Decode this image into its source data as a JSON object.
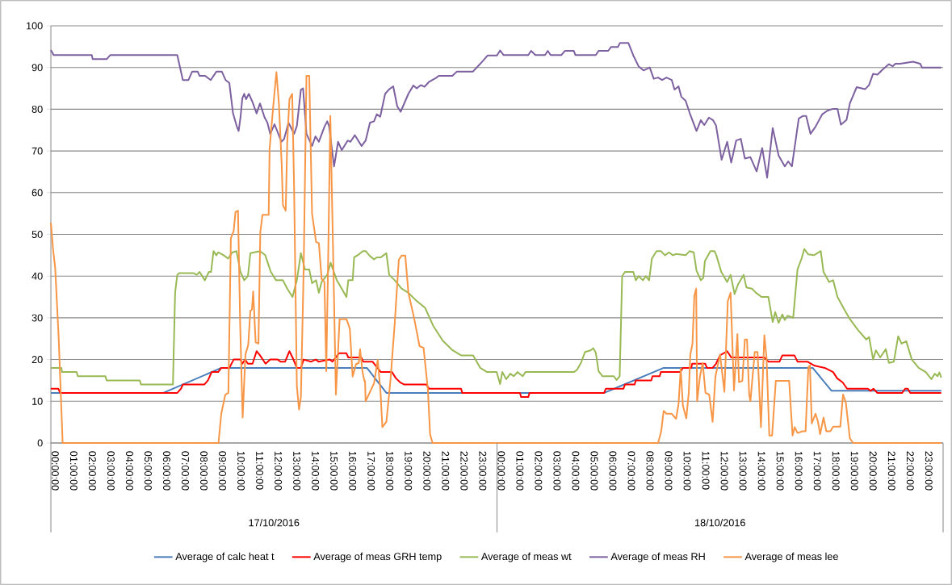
{
  "chart_data": {
    "type": "line",
    "xlim": [
      "2016-10-17T00:00",
      "2016-10-19T00:00"
    ],
    "ylim": [
      0,
      100
    ],
    "yticks": [
      0,
      10,
      20,
      30,
      40,
      50,
      60,
      70,
      80,
      90,
      100
    ],
    "xticks": [
      {
        "value": "2016-10-17T00:00",
        "label": "00:00:00"
      },
      {
        "value": "2016-10-17T01:00",
        "label": "01:00:00"
      },
      {
        "value": "2016-10-17T02:00",
        "label": "02:00:00"
      },
      {
        "value": "2016-10-17T03:00",
        "label": "03:00:00"
      },
      {
        "value": "2016-10-17T04:00",
        "label": "04:00:00"
      },
      {
        "value": "2016-10-17T05:00",
        "label": "05:00:00"
      },
      {
        "value": "2016-10-17T06:00",
        "label": "06:00:00"
      },
      {
        "value": "2016-10-17T07:00",
        "label": "07:00:00"
      },
      {
        "value": "2016-10-17T08:00",
        "label": "08:00:00"
      },
      {
        "value": "2016-10-17T09:00",
        "label": "09:00:00"
      },
      {
        "value": "2016-10-17T10:00",
        "label": "10:00:00"
      },
      {
        "value": "2016-10-17T11:00",
        "label": "11:00:00"
      },
      {
        "value": "2016-10-17T12:00",
        "label": "12:00:00"
      },
      {
        "value": "2016-10-17T13:00",
        "label": "13:00:00"
      },
      {
        "value": "2016-10-17T14:00",
        "label": "14:00:00"
      },
      {
        "value": "2016-10-17T15:00",
        "label": "15:00:00"
      },
      {
        "value": "2016-10-17T16:00",
        "label": "16:00:00"
      },
      {
        "value": "2016-10-17T17:00",
        "label": "17:00:00"
      },
      {
        "value": "2016-10-17T18:00",
        "label": "18:00:00"
      },
      {
        "value": "2016-10-17T19:00",
        "label": "19:00:00"
      },
      {
        "value": "2016-10-17T20:00",
        "label": "20:00:00"
      },
      {
        "value": "2016-10-17T21:00",
        "label": "21:00:00"
      },
      {
        "value": "2016-10-17T22:00",
        "label": "22:00:00"
      },
      {
        "value": "2016-10-17T23:00",
        "label": "23:00:00"
      },
      {
        "value": "2016-10-18T00:00",
        "label": "00:00:00"
      },
      {
        "value": "2016-10-18T01:00",
        "label": "01:00:00"
      },
      {
        "value": "2016-10-18T02:00",
        "label": "02:00:00"
      },
      {
        "value": "2016-10-18T03:00",
        "label": "03:00:00"
      },
      {
        "value": "2016-10-18T04:00",
        "label": "04:00:00"
      },
      {
        "value": "2016-10-18T05:00",
        "label": "05:00:00"
      },
      {
        "value": "2016-10-18T06:00",
        "label": "06:00:00"
      },
      {
        "value": "2016-10-18T07:00",
        "label": "07:00:00"
      },
      {
        "value": "2016-10-18T08:00",
        "label": "08:00:00"
      },
      {
        "value": "2016-10-18T09:00",
        "label": "09:00:00"
      },
      {
        "value": "2016-10-18T10:00",
        "label": "10:00:00"
      },
      {
        "value": "2016-10-18T11:00",
        "label": "11:00:00"
      },
      {
        "value": "2016-10-18T12:00",
        "label": "12:00:00"
      },
      {
        "value": "2016-10-18T13:00",
        "label": "13:00:00"
      },
      {
        "value": "2016-10-18T14:00",
        "label": "14:00:00"
      },
      {
        "value": "2016-10-18T15:00",
        "label": "15:00:00"
      },
      {
        "value": "2016-10-18T16:00",
        "label": "16:00:00"
      },
      {
        "value": "2016-10-18T17:00",
        "label": "17:00:00"
      },
      {
        "value": "2016-10-18T18:00",
        "label": "18:00:00"
      },
      {
        "value": "2016-10-18T19:00",
        "label": "19:00:00"
      },
      {
        "value": "2016-10-18T20:00",
        "label": "20:00:00"
      },
      {
        "value": "2016-10-18T21:00",
        "label": "21:00:00"
      },
      {
        "value": "2016-10-18T22:00",
        "label": "22:00:00"
      },
      {
        "value": "2016-10-18T23:00",
        "label": "23:00:00"
      }
    ],
    "annotations": [
      "17/10/2016",
      "18/10/2016"
    ],
    "grid": "y",
    "legend": "bottom",
    "series": [
      {
        "name": "Average of calc heat t",
        "color": "#4a7ebb",
        "x": [
          "2016-10-17T00:00",
          "2016-10-17T06:03",
          "2016-10-17T09:10",
          "2016-10-17T17:00",
          "2016-10-17T18:03",
          "2016-10-18T05:46",
          "2016-10-18T08:58",
          "2016-10-18T16:59",
          "2016-10-18T18:00",
          "2016-10-18T23:54"
        ],
        "values": [
          12,
          12,
          18,
          18,
          12,
          12,
          18,
          18,
          12.5,
          12.5
        ]
      },
      {
        "name": "Average of meas GRH temp",
        "color": "#ff0000",
        "x": [
          "2016-10-17T00:00",
          "2016-10-17T00:24",
          "2016-10-17T00:30",
          "2016-10-17T06:48",
          "2016-10-17T07:00",
          "2016-10-17T07:06",
          "2016-10-17T08:15",
          "2016-10-17T08:27",
          "2016-10-17T08:39",
          "2016-10-17T09:00",
          "2016-10-17T09:10",
          "2016-10-17T09:36",
          "2016-10-17T09:50",
          "2016-10-17T10:12",
          "2016-10-17T10:18",
          "2016-10-17T10:27",
          "2016-10-17T10:36",
          "2016-10-17T10:51",
          "2016-10-17T11:04",
          "2016-10-17T11:15",
          "2016-10-17T11:33",
          "2016-10-17T11:48",
          "2016-10-17T12:12",
          "2016-10-17T12:21",
          "2016-10-17T12:36",
          "2016-10-17T12:50",
          "2016-10-17T13:00",
          "2016-10-17T13:14",
          "2016-10-17T13:27",
          "2016-10-17T13:36",
          "2016-10-17T14:00",
          "2016-10-17T14:15",
          "2016-10-17T14:24",
          "2016-10-17T15:00",
          "2016-10-17T15:09",
          "2016-10-17T15:30",
          "2016-10-17T15:54",
          "2016-10-17T16:00",
          "2016-10-17T16:42",
          "2016-10-17T16:48",
          "2016-10-17T17:18",
          "2016-10-17T17:45",
          "2016-10-17T18:21",
          "2016-10-17T18:34",
          "2016-10-17T18:48",
          "2016-10-17T19:01",
          "2016-10-17T20:12",
          "2016-10-17T20:21",
          "2016-10-17T22:04",
          "2016-10-17T22:08",
          "2016-10-18T01:14",
          "2016-10-18T01:18",
          "2016-10-18T01:41",
          "2016-10-18T01:45",
          "2016-10-18T05:46",
          "2016-10-18T05:51",
          "2016-10-18T06:48",
          "2016-10-18T06:53",
          "2016-10-18T07:24",
          "2016-10-18T07:28",
          "2016-10-18T08:18",
          "2016-10-18T08:22",
          "2016-10-18T08:45",
          "2016-10-18T08:49",
          "2016-10-18T09:51",
          "2016-10-18T10:00",
          "2016-10-18T10:27",
          "2016-10-18T10:30",
          "2016-10-18T11:12",
          "2016-10-18T11:18",
          "2016-10-18T11:36",
          "2016-10-18T11:47",
          "2016-10-18T12:00",
          "2016-10-18T12:23",
          "2016-10-18T12:36",
          "2016-10-18T14:23",
          "2016-10-18T14:36",
          "2016-10-18T15:12",
          "2016-10-18T15:21",
          "2016-10-18T16:00",
          "2016-10-18T16:10",
          "2016-10-18T16:42",
          "2016-10-18T16:54",
          "2016-10-18T17:06",
          "2016-10-18T17:38",
          "2016-10-18T18:05",
          "2016-10-18T18:18",
          "2016-10-18T18:36",
          "2016-10-18T18:50",
          "2016-10-18T19:57",
          "2016-10-18T20:06",
          "2016-10-18T20:15",
          "2016-10-18T20:28",
          "2016-10-18T21:48",
          "2016-10-18T21:57",
          "2016-10-18T22:06",
          "2016-10-18T22:14",
          "2016-10-18T23:54"
        ],
        "values": [
          13,
          13,
          12,
          12,
          13,
          14,
          14,
          15,
          17,
          17,
          18,
          18,
          20,
          20,
          19,
          20,
          19,
          19,
          22,
          21,
          19,
          20,
          20,
          19.5,
          19.5,
          22,
          20.5,
          18,
          18,
          20,
          19.5,
          20,
          19.5,
          20,
          19.5,
          21.5,
          21.5,
          20.5,
          20.5,
          19.5,
          19.5,
          17,
          17,
          15.5,
          14.5,
          14,
          14,
          13,
          13,
          12,
          12,
          11,
          11,
          12,
          12,
          13,
          13,
          14,
          14,
          15,
          15,
          16,
          16,
          17,
          17,
          18,
          18,
          19,
          19,
          18,
          18,
          19,
          21,
          22,
          20.5,
          20.5,
          19.5,
          19.5,
          21,
          21,
          19.5,
          19.5,
          19,
          18.5,
          18,
          17,
          15.5,
          14.5,
          13,
          13,
          12.5,
          13,
          12,
          12,
          13,
          13,
          12,
          12
        ]
      },
      {
        "name": "Average of meas wt",
        "color": "#98b954",
        "x": [
          "2016-10-17T00:00",
          "2016-10-17T00:34",
          "2016-10-17T00:36",
          "2016-10-17T01:23",
          "2016-10-17T01:27",
          "2016-10-17T02:56",
          "2016-10-17T03:00",
          "2016-10-17T04:47",
          "2016-10-17T04:51",
          "2016-10-17T06:34",
          "2016-10-17T06:41",
          "2016-10-17T06:48",
          "2016-10-17T06:54",
          "2016-10-17T07:41",
          "2016-10-17T07:51",
          "2016-10-17T08:00",
          "2016-10-17T08:17",
          "2016-10-17T08:30",
          "2016-10-17T08:37",
          "2016-10-17T08:45",
          "2016-10-17T08:54",
          "2016-10-17T09:00",
          "2016-10-17T09:18",
          "2016-10-17T09:32",
          "2016-10-17T09:46",
          "2016-10-17T09:59",
          "2016-10-17T10:12",
          "2016-10-17T10:24",
          "2016-10-17T10:36",
          "2016-10-17T10:44",
          "2016-10-17T11:15",
          "2016-10-17T11:32",
          "2016-10-17T11:50",
          "2016-10-17T12:07",
          "2016-10-17T12:29",
          "2016-10-17T12:43",
          "2016-10-17T13:00",
          "2016-10-17T13:14",
          "2016-10-17T13:27",
          "2016-10-17T13:40",
          "2016-10-17T13:54",
          "2016-10-17T14:03",
          "2016-10-17T14:16",
          "2016-10-17T14:25",
          "2016-10-17T14:34",
          "2016-10-17T14:52",
          "2016-10-17T15:03",
          "2016-10-17T15:23",
          "2016-10-17T15:41",
          "2016-10-17T15:54",
          "2016-10-17T16:00",
          "2016-10-17T16:14",
          "2016-10-17T16:19",
          "2016-10-17T16:34",
          "2016-10-17T16:47",
          "2016-10-17T16:56",
          "2016-10-17T17:10",
          "2016-10-17T17:23",
          "2016-10-17T17:32",
          "2016-10-17T17:45",
          "2016-10-17T17:54",
          "2016-10-17T18:03",
          "2016-10-17T18:12",
          "2016-10-17T18:30",
          "2016-10-17T18:52",
          "2016-10-17T19:14",
          "2016-10-17T19:37",
          "2016-10-17T20:08",
          "2016-10-17T20:34",
          "2016-10-17T21:05",
          "2016-10-17T21:37",
          "2016-10-17T22:04",
          "2016-10-17T22:43",
          "2016-10-17T23:06",
          "2016-10-17T23:28",
          "2016-10-17T23:59",
          "2016-10-18T00:10",
          "2016-10-18T00:17",
          "2016-10-18T00:30",
          "2016-10-18T00:43",
          "2016-10-18T00:54",
          "2016-10-18T01:06",
          "2016-10-18T01:23",
          "2016-10-18T01:32",
          "2016-10-18T04:08",
          "2016-10-18T04:18",
          "2016-10-18T04:31",
          "2016-10-18T04:44",
          "2016-10-18T05:02",
          "2016-10-18T05:11",
          "2016-10-18T05:19",
          "2016-10-18T05:28",
          "2016-10-18T05:41",
          "2016-10-18T06:17",
          "2016-10-18T06:26",
          "2016-10-18T06:36",
          "2016-10-18T06:44",
          "2016-10-18T06:53",
          "2016-10-18T07:20",
          "2016-10-18T07:28",
          "2016-10-18T07:37",
          "2016-10-18T07:51",
          "2016-10-18T08:00",
          "2016-10-18T08:11",
          "2016-10-18T08:20",
          "2016-10-18T08:35",
          "2016-10-18T08:49",
          "2016-10-18T09:02",
          "2016-10-18T09:15",
          "2016-10-18T09:28",
          "2016-10-18T09:38",
          "2016-10-18T10:09",
          "2016-10-18T10:22",
          "2016-10-18T10:35",
          "2016-10-18T10:44",
          "2016-10-18T10:58",
          "2016-10-18T11:06",
          "2016-10-18T11:11",
          "2016-10-18T11:29",
          "2016-10-18T11:42",
          "2016-10-18T11:48",
          "2016-10-18T12:04",
          "2016-10-18T12:23",
          "2016-10-18T12:34",
          "2016-10-18T12:47",
          "2016-10-18T12:58",
          "2016-10-18T13:16",
          "2016-10-18T13:25",
          "2016-10-18T13:43",
          "2016-10-18T13:56",
          "2016-10-18T14:14",
          "2016-10-18T14:36",
          "2016-10-18T14:50",
          "2016-10-18T14:58",
          "2016-10-18T15:09",
          "2016-10-18T15:21",
          "2016-10-18T15:29",
          "2016-10-18T15:38",
          "2016-10-18T15:56",
          "2016-10-18T16:10",
          "2016-10-18T16:23",
          "2016-10-18T16:32",
          "2016-10-18T16:45",
          "2016-10-18T17:03",
          "2016-10-18T17:25",
          "2016-10-18T17:34",
          "2016-10-18T17:52",
          "2016-10-18T18:05",
          "2016-10-18T18:19",
          "2016-10-18T18:41",
          "2016-10-18T18:59",
          "2016-10-18T19:25",
          "2016-10-18T19:52",
          "2016-10-18T20:01",
          "2016-10-18T20:14",
          "2016-10-18T20:23",
          "2016-10-18T20:37",
          "2016-10-18T20:55",
          "2016-10-18T21:05",
          "2016-10-18T21:21",
          "2016-10-18T21:35",
          "2016-10-18T21:46",
          "2016-10-18T22:01",
          "2016-10-18T22:19",
          "2016-10-18T22:41",
          "2016-10-18T23:04",
          "2016-10-18T23:22",
          "2016-10-18T23:33",
          "2016-10-18T23:42",
          "2016-10-18T23:48",
          "2016-10-18T23:54"
        ],
        "values": [
          18,
          18,
          17,
          17,
          16,
          16,
          15,
          15,
          14,
          14,
          36,
          40.3,
          40.7,
          40.7,
          40.3,
          41,
          39,
          41,
          41,
          46,
          45,
          45.7,
          45,
          44.2,
          45.7,
          46,
          41,
          39,
          40,
          45.5,
          46,
          45,
          41,
          39,
          39,
          37,
          35,
          39,
          45.5,
          41.6,
          41.6,
          38.3,
          39,
          36,
          38.6,
          40.3,
          43.2,
          39,
          36.7,
          35,
          39,
          39,
          44.5,
          45.2,
          46,
          46,
          44.8,
          44,
          44.5,
          44.5,
          45,
          45.5,
          40.3,
          39,
          37,
          36,
          34.3,
          32.4,
          28.1,
          24.5,
          22.2,
          21,
          21,
          18,
          17,
          17,
          14.1,
          17,
          15.3,
          16.6,
          16,
          17,
          16,
          17,
          17,
          17.5,
          19.2,
          21.8,
          22.2,
          22.7,
          21.6,
          17.2,
          16,
          16,
          15.1,
          16,
          40,
          41,
          41,
          39,
          40,
          39,
          40,
          39,
          44.2,
          46,
          46,
          45,
          45.7,
          45,
          45.3,
          45,
          46,
          45.7,
          41.3,
          39,
          39.6,
          43.6,
          46,
          46,
          45,
          41,
          38.6,
          40.3,
          35.7,
          38,
          40.3,
          37.3,
          37,
          36,
          35,
          35,
          29,
          31.4,
          28.8,
          30.8,
          29.5,
          30.5,
          30,
          41.6,
          44.2,
          46.5,
          45.2,
          45,
          46,
          41,
          38.6,
          39,
          35,
          32,
          29.7,
          27.1,
          24.8,
          25.4,
          20,
          22.2,
          20.5,
          22.5,
          19.2,
          19.5,
          25.6,
          23.8,
          24.4,
          20,
          18,
          17,
          15.3,
          16.6,
          16,
          16.9,
          15.7
        ]
      },
      {
        "name": "Average of meas RH",
        "color": "#7d60a0",
        "x": [
          "2016-10-17T00:00",
          "2016-10-17T00:09",
          "2016-10-17T02:12",
          "2016-10-17T02:15",
          "2016-10-17T03:00",
          "2016-10-17T03:12",
          "2016-10-17T06:48",
          "2016-10-17T07:06",
          "2016-10-17T07:24",
          "2016-10-17T07:36",
          "2016-10-17T07:54",
          "2016-10-17T08:00",
          "2016-10-17T08:18",
          "2016-10-17T08:36",
          "2016-10-17T08:54",
          "2016-10-17T09:12",
          "2016-10-17T09:24",
          "2016-10-17T09:36",
          "2016-10-17T09:48",
          "2016-10-17T10:00",
          "2016-10-17T10:06",
          "2016-10-17T10:12",
          "2016-10-17T10:18",
          "2016-10-17T10:24",
          "2016-10-17T10:30",
          "2016-10-17T10:39",
          "2016-10-17T10:51",
          "2016-10-17T11:04",
          "2016-10-17T11:15",
          "2016-10-17T11:30",
          "2016-10-17T11:39",
          "2016-10-17T11:48",
          "2016-10-17T12:02",
          "2016-10-17T12:24",
          "2016-10-17T12:33",
          "2016-10-17T12:47",
          "2016-10-17T13:05",
          "2016-10-17T13:14",
          "2016-10-17T13:27",
          "2016-10-17T13:34",
          "2016-10-17T13:45",
          "2016-10-17T14:03",
          "2016-10-17T14:14",
          "2016-10-17T14:25",
          "2016-10-17T14:43",
          "2016-10-17T14:52",
          "2016-10-17T14:58",
          "2016-10-17T15:14",
          "2016-10-17T15:27",
          "2016-10-17T15:39",
          "2016-10-17T15:58",
          "2016-10-17T16:07",
          "2016-10-17T16:21",
          "2016-10-17T16:43",
          "2016-10-17T16:56",
          "2016-10-17T17:10",
          "2016-10-17T17:23",
          "2016-10-17T17:32",
          "2016-10-17T17:43",
          "2016-10-17T17:59",
          "2016-10-17T18:12",
          "2016-10-17T18:25",
          "2016-10-17T18:38",
          "2016-10-17T18:49",
          "2016-10-17T19:14",
          "2016-10-17T19:30",
          "2016-10-17T19:41",
          "2016-10-17T19:54",
          "2016-10-17T20:06",
          "2016-10-17T20:21",
          "2016-10-17T20:43",
          "2016-10-17T20:52",
          "2016-10-17T21:36",
          "2016-10-17T21:50",
          "2016-10-17T22:42",
          "2016-10-17T23:06",
          "2016-10-17T23:30",
          "2016-10-18T00:00",
          "2016-10-18T00:10",
          "2016-10-18T00:21",
          "2016-10-18T01:41",
          "2016-10-18T01:50",
          "2016-10-18T02:04",
          "2016-10-18T02:35",
          "2016-10-18T02:44",
          "2016-10-18T02:53",
          "2016-10-18T03:28",
          "2016-10-18T03:39",
          "2016-10-18T04:08",
          "2016-10-18T04:13",
          "2016-10-18T05:19",
          "2016-10-18T05:28",
          "2016-10-18T05:59",
          "2016-10-18T06:08",
          "2016-10-18T06:30",
          "2016-10-18T06:37",
          "2016-10-18T07:04",
          "2016-10-18T07:20",
          "2016-10-18T07:37",
          "2016-10-18T07:53",
          "2016-10-18T08:13",
          "2016-10-18T08:26",
          "2016-10-18T08:40",
          "2016-10-18T08:53",
          "2016-10-18T09:07",
          "2016-10-18T09:24",
          "2016-10-18T09:33",
          "2016-10-18T09:46",
          "2016-10-18T09:55",
          "2016-10-18T10:09",
          "2016-10-18T10:22",
          "2016-10-18T10:44",
          "2016-10-18T10:58",
          "2016-10-18T11:09",
          "2016-10-18T11:24",
          "2016-10-18T11:37",
          "2016-10-18T11:47",
          "2016-10-18T12:05",
          "2016-10-18T12:23",
          "2016-10-18T12:36",
          "2016-10-18T12:52",
          "2016-10-18T13:07",
          "2016-10-18T13:20",
          "2016-10-18T13:38",
          "2016-10-18T13:58",
          "2016-10-18T14:16",
          "2016-10-18T14:32",
          "2016-10-18T14:50",
          "2016-10-18T15:09",
          "2016-10-18T15:29",
          "2016-10-18T15:40",
          "2016-10-18T15:52",
          "2016-10-18T16:14",
          "2016-10-18T16:28",
          "2016-10-18T16:38",
          "2016-10-18T16:52",
          "2016-10-18T17:08",
          "2016-10-18T17:30",
          "2016-10-18T17:47",
          "2016-10-18T18:05",
          "2016-10-18T18:19",
          "2016-10-18T18:30",
          "2016-10-18T18:48",
          "2016-10-18T18:59",
          "2016-10-18T19:21",
          "2016-10-18T19:48",
          "2016-10-18T20:01",
          "2016-10-18T20:14",
          "2016-10-18T20:28",
          "2016-10-18T20:46",
          "2016-10-18T21:05",
          "2016-10-18T21:17",
          "2016-10-18T21:26",
          "2016-10-18T21:41",
          "2016-10-18T22:23",
          "2016-10-18T22:46",
          "2016-10-18T22:52",
          "2016-10-18T23:54"
        ],
        "values": [
          94.2,
          93,
          93,
          92,
          92,
          93,
          93,
          87,
          87,
          89,
          89,
          88,
          88,
          87,
          89,
          89,
          87,
          86.3,
          79,
          75.9,
          74.8,
          78,
          82.6,
          83.7,
          82.4,
          83.7,
          81.7,
          79,
          81.4,
          78,
          76.8,
          74.1,
          76.4,
          72.2,
          72.9,
          76.8,
          74.1,
          76,
          84.7,
          85,
          74.1,
          71.2,
          73.5,
          72.2,
          75.8,
          77.1,
          76,
          66.3,
          72.2,
          70.2,
          72.5,
          72.2,
          73.8,
          71.2,
          72.5,
          76.8,
          77.1,
          78.8,
          78.2,
          83.7,
          84.8,
          85.5,
          80.7,
          79.4,
          83.7,
          85.7,
          85,
          85.8,
          85.4,
          86.6,
          87.5,
          88,
          88,
          89,
          89,
          90.9,
          92.9,
          92.9,
          94.1,
          93,
          93,
          94,
          93,
          93,
          94,
          93,
          93,
          94,
          94,
          93,
          93,
          94,
          94,
          94.9,
          94.9,
          95.9,
          95.9,
          92.9,
          90.3,
          89.3,
          90,
          87.3,
          87.6,
          87,
          87.6,
          87,
          84.7,
          85.5,
          83,
          82,
          79.1,
          74.8,
          77.4,
          76.2,
          78,
          77.4,
          76.1,
          67.9,
          72.2,
          67.2,
          72.5,
          72.9,
          68.2,
          68.5,
          65.1,
          70.7,
          63.6,
          75.5,
          68.9,
          66.3,
          67.5,
          66.3,
          77.8,
          78.4,
          78.4,
          74.1,
          75.8,
          78.8,
          79.7,
          80.1,
          80.1,
          76.3,
          77.4,
          81.4,
          85.3,
          84.8,
          85.8,
          88.5,
          88.3,
          89.6,
          90.8,
          90.3,
          90.9,
          90.9,
          91.4,
          90.9,
          90,
          90
        ]
      },
      {
        "name": "Average of meas lee",
        "color": "#f79646",
        "x": [
          "2016-10-17T00:00",
          "2016-10-17T00:07",
          "2016-10-17T00:14",
          "2016-10-17T00:25",
          "2016-10-17T00:38",
          "2016-10-17T09:01",
          "2016-10-17T09:10",
          "2016-10-17T09:23",
          "2016-10-17T09:33",
          "2016-10-17T09:41",
          "2016-10-17T09:50",
          "2016-10-17T09:56",
          "2016-10-17T10:04",
          "2016-10-17T10:11",
          "2016-10-17T10:19",
          "2016-10-17T10:28",
          "2016-10-17T10:37",
          "2016-10-17T10:44",
          "2016-10-17T10:49",
          "2016-10-17T10:53",
          "2016-10-17T11:01",
          "2016-10-17T11:10",
          "2016-10-17T11:16",
          "2016-10-17T11:23",
          "2016-10-17T11:43",
          "2016-10-17T11:46",
          "2016-10-17T11:57",
          "2016-10-17T12:08",
          "2016-10-17T12:16",
          "2016-10-17T12:25",
          "2016-10-17T12:29",
          "2016-10-17T12:38",
          "2016-10-17T12:43",
          "2016-10-17T12:50",
          "2016-10-17T12:59",
          "2016-10-17T13:05",
          "2016-10-17T13:14",
          "2016-10-17T13:21",
          "2016-10-17T13:27",
          "2016-10-17T13:36",
          "2016-10-17T13:45",
          "2016-10-17T13:54",
          "2016-10-17T14:03",
          "2016-10-17T14:16",
          "2016-10-17T14:25",
          "2016-10-17T14:34",
          "2016-10-17T14:43",
          "2016-10-17T14:49",
          "2016-10-17T14:56",
          "2016-10-17T15:02",
          "2016-10-17T15:12",
          "2016-10-17T15:20",
          "2016-10-17T15:32",
          "2016-10-17T15:54",
          "2016-10-17T16:05",
          "2016-10-17T16:14",
          "2016-10-17T16:25",
          "2016-10-17T16:34",
          "2016-10-17T16:38",
          "2016-10-17T16:46",
          "2016-10-17T16:52",
          "2016-10-17T16:54",
          "2016-10-17T16:56",
          "2016-10-17T17:23",
          "2016-10-17T17:35",
          "2016-10-17T17:44",
          "2016-10-17T17:50",
          "2016-10-17T18:03",
          "2016-10-17T18:16",
          "2016-10-17T18:30",
          "2016-10-17T18:43",
          "2016-10-17T18:52",
          "2016-10-17T19:04",
          "2016-10-17T19:14",
          "2016-10-17T19:32",
          "2016-10-17T19:50",
          "2016-10-17T20:03",
          "2016-10-17T20:17",
          "2016-10-17T20:24",
          "2016-10-17T20:32",
          "2016-10-18T08:40",
          "2016-10-18T08:50",
          "2016-10-18T08:58",
          "2016-10-18T09:07",
          "2016-10-18T09:24",
          "2016-10-18T09:38",
          "2016-10-18T09:46",
          "2016-10-18T09:53",
          "2016-10-18T10:00",
          "2016-10-18T10:11",
          "2016-10-18T10:19",
          "2016-10-18T10:24",
          "2016-10-18T10:31",
          "2016-10-18T10:37",
          "2016-10-18T10:43",
          "2016-10-18T10:46",
          "2016-10-18T10:55",
          "2016-10-18T11:04",
          "2016-10-18T11:13",
          "2016-10-18T11:25",
          "2016-10-18T11:36",
          "2016-10-18T11:45",
          "2016-10-18T12:00",
          "2016-10-18T12:14",
          "2016-10-18T12:25",
          "2016-10-18T12:34",
          "2016-10-18T12:45",
          "2016-10-18T12:56",
          "2016-10-18T13:01",
          "2016-10-18T13:12",
          "2016-10-18T13:20",
          "2016-10-18T13:27",
          "2016-10-18T13:34",
          "2016-10-18T13:38",
          "2016-10-18T13:52",
          "2016-10-18T14:01",
          "2016-10-18T14:12",
          "2016-10-18T14:23",
          "2016-10-18T14:30",
          "2016-10-18T14:39",
          "2016-10-18T14:48",
          "2016-10-18T15:00",
          "2016-10-18T15:43",
          "2016-10-18T15:54",
          "2016-10-18T16:01",
          "2016-10-18T16:10",
          "2016-10-18T16:26",
          "2016-10-18T16:36",
          "2016-10-18T16:45",
          "2016-10-18T16:50",
          "2016-10-18T16:56",
          "2016-10-18T17:08",
          "2016-10-18T17:16",
          "2016-10-18T17:23",
          "2016-10-18T17:34",
          "2016-10-18T17:43",
          "2016-10-18T17:56",
          "2016-10-18T18:05",
          "2016-10-18T18:28",
          "2016-10-18T18:37",
          "2016-10-18T18:46",
          "2016-10-18T18:59",
          "2016-10-18T19:10",
          "2016-10-18T23:54"
        ],
        "values": [
          52.8,
          46.5,
          41.9,
          25.5,
          0,
          0,
          7,
          11.6,
          12,
          49.1,
          50.8,
          55.4,
          55.7,
          28.5,
          6.1,
          21.2,
          23.5,
          31.7,
          32,
          36.3,
          24.1,
          23.8,
          50.5,
          54.7,
          54.7,
          70.5,
          80.1,
          88.9,
          81.4,
          66.9,
          57,
          55.7,
          72.2,
          82.4,
          83.7,
          61.6,
          13.6,
          8,
          11,
          41.9,
          88,
          88,
          55,
          48.2,
          47.9,
          39.3,
          38.6,
          17.2,
          48.5,
          78.4,
          42,
          11.6,
          29.7,
          29.7,
          27.4,
          15.9,
          18.9,
          19.2,
          22.5,
          17,
          14.9,
          14.9,
          10,
          14.3,
          19.9,
          12.3,
          3.8,
          5.1,
          14.9,
          28.8,
          43.9,
          44.9,
          44.9,
          36,
          30.1,
          23.2,
          22.8,
          12.8,
          2.1,
          0,
          0,
          2.8,
          7.7,
          7,
          7,
          5.8,
          9.3,
          17.9,
          9,
          5.9,
          12,
          21.2,
          23.8,
          35.3,
          37,
          10,
          15.9,
          19.2,
          12,
          11.6,
          5.1,
          15.9,
          21.2,
          12.3,
          34,
          36,
          12.6,
          26.1,
          14.6,
          14.9,
          24.8,
          24.8,
          11.6,
          10,
          21.8,
          21.8,
          3.8,
          25.8,
          20.5,
          1.8,
          1.8,
          14.9,
          14.9,
          1.8,
          3.8,
          2.4,
          2.8,
          2.8,
          18.2,
          18.6,
          4.7,
          7,
          5.1,
          2.1,
          6.1,
          2.8,
          2.8,
          3.9,
          3.9,
          11.6,
          9.7,
          1.1,
          0,
          0
        ]
      }
    ]
  }
}
